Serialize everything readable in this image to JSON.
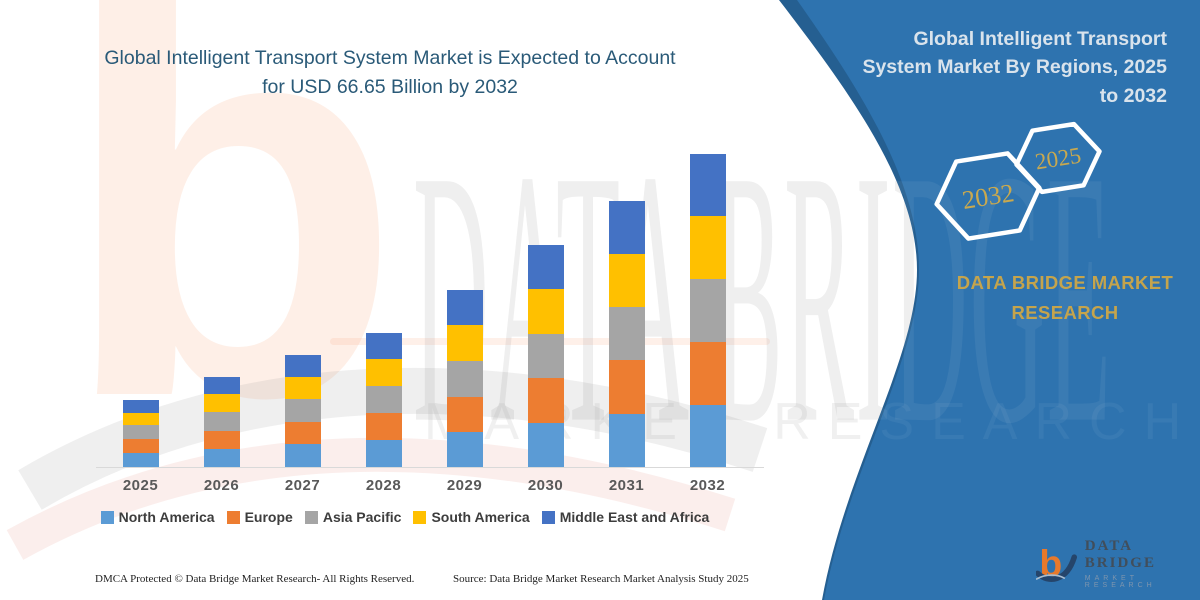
{
  "colors": {
    "panel_blue": "#2E73AF",
    "panel_blue_dark": "#255F91",
    "gold": "#C9A94F",
    "title_teal": "#2A5A78"
  },
  "left_section": {
    "title_lines": [
      "Global Intelligent Transport System Market is Expected to Account",
      "for USD 66.65 Billion by 2032"
    ],
    "footer": {
      "dmca": "DMCA Protected © Data Bridge Market Research- All Rights Reserved.",
      "source": "Source: Data Bridge Market Research Market Analysis Study 2025"
    }
  },
  "right_panel": {
    "title_lines": [
      "Global Intelligent Transport",
      "System Market By Regions, 2025",
      "to 2032"
    ],
    "hexagon_left_label": "2032",
    "hexagon_right_label": "2025",
    "brand_lines": [
      "DATA BRIDGE MARKET",
      "RESEARCH"
    ],
    "logo": {
      "mark": "b",
      "title": "DATA BRIDGE",
      "subtitle": "MARKET RESEARCH"
    }
  },
  "watermark": {
    "letter": "b",
    "line1": "DATA BRIDGE",
    "line2": "MARKET RESEARCH"
  },
  "chart_data": {
    "type": "bar",
    "stacked": true,
    "title": "Global Intelligent Transport System Market is Expected to Account for USD 66.65 Billion by 2032",
    "unit": "USD Billion",
    "categories": [
      "2025",
      "2026",
      "2027",
      "2028",
      "2029",
      "2030",
      "2031",
      "2032"
    ],
    "series": [
      {
        "name": "North America",
        "color": "#5B9BD5",
        "values": [
          3.0,
          3.9,
          4.8,
          5.7,
          7.4,
          9.4,
          11.3,
          13.3
        ]
      },
      {
        "name": "Europe",
        "color": "#ED7D31",
        "values": [
          2.9,
          3.85,
          4.8,
          5.75,
          7.6,
          9.5,
          11.4,
          13.4
        ]
      },
      {
        "name": "Asia Pacific",
        "color": "#A5A5A5",
        "values": [
          3.0,
          3.9,
          4.8,
          5.75,
          7.6,
          9.5,
          11.3,
          13.3
        ]
      },
      {
        "name": "South America",
        "color": "#FFC000",
        "values": [
          2.7,
          3.8,
          4.75,
          5.7,
          7.6,
          9.5,
          11.4,
          13.35
        ]
      },
      {
        "name": "Middle East and Africa",
        "color": "#4472C4",
        "values": [
          2.7,
          3.75,
          4.75,
          5.7,
          7.4,
          9.4,
          11.2,
          13.3
        ]
      }
    ],
    "totals_estimated": [
      14.3,
      19.2,
      23.9,
      28.6,
      37.6,
      47.3,
      56.6,
      66.65
    ],
    "ylim": [
      0,
      70
    ],
    "grid": false,
    "legend_position": "bottom",
    "xlabel": "",
    "ylabel": ""
  }
}
